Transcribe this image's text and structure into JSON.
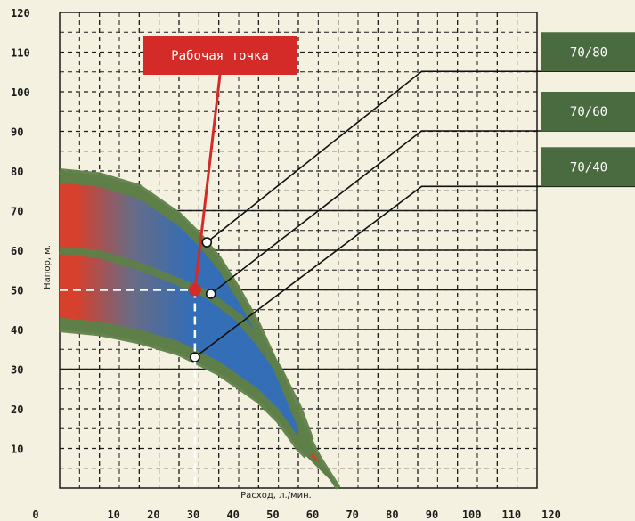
{
  "chart_data": {
    "type": "line",
    "title": "",
    "xlabel": "Расход, л./мин.",
    "ylabel": "Напор, м.",
    "xlim": [
      0,
      120
    ],
    "ylim": [
      0,
      120
    ],
    "x_ticks": [
      0,
      10,
      20,
      30,
      40,
      50,
      60,
      70,
      80,
      90,
      100,
      110,
      120
    ],
    "y_ticks": [
      0,
      10,
      20,
      30,
      40,
      50,
      60,
      70,
      80,
      90,
      100,
      110,
      120
    ],
    "grid": true,
    "band": {
      "upper": [
        [
          0,
          80
        ],
        [
          10,
          79
        ],
        [
          20,
          76
        ],
        [
          30,
          69
        ],
        [
          35,
          64
        ],
        [
          40,
          58
        ],
        [
          45,
          50
        ],
        [
          50,
          41
        ],
        [
          55,
          30
        ],
        [
          60,
          18
        ],
        [
          65,
          8
        ],
        [
          70,
          0
        ]
      ],
      "lower": [
        [
          0,
          40
        ],
        [
          10,
          39
        ],
        [
          20,
          37
        ],
        [
          30,
          34
        ],
        [
          40,
          29
        ],
        [
          50,
          22
        ],
        [
          55,
          17
        ],
        [
          60,
          10
        ],
        [
          62,
          8
        ]
      ]
    },
    "series": [
      {
        "name": "70/80",
        "points": [
          [
            0,
            80
          ],
          [
            10,
            79
          ],
          [
            20,
            76
          ],
          [
            30,
            69
          ],
          [
            35,
            64
          ],
          [
            40,
            58
          ],
          [
            45,
            50
          ],
          [
            50,
            41
          ],
          [
            55,
            30
          ],
          [
            60,
            18
          ],
          [
            65,
            8
          ],
          [
            70,
            0
          ]
        ]
      },
      {
        "name": "70/60",
        "points": [
          [
            0,
            60
          ],
          [
            10,
            59
          ],
          [
            20,
            56
          ],
          [
            30,
            52
          ],
          [
            37,
            49
          ],
          [
            45,
            43
          ],
          [
            50,
            37
          ],
          [
            55,
            30
          ],
          [
            60,
            20
          ],
          [
            63,
            12
          ]
        ]
      },
      {
        "name": "70/40",
        "points": [
          [
            0,
            40
          ],
          [
            10,
            39
          ],
          [
            20,
            37
          ],
          [
            30,
            34
          ],
          [
            40,
            29
          ],
          [
            50,
            22
          ],
          [
            55,
            17
          ],
          [
            60,
            10
          ],
          [
            62,
            8
          ]
        ]
      }
    ],
    "markers": [
      {
        "series": "70/80",
        "x": 37,
        "y": 62
      },
      {
        "series": "70/60",
        "x": 38,
        "y": 49
      },
      {
        "series": "70/40",
        "x": 34,
        "y": 33
      }
    ],
    "operating_point": {
      "label": "Рабочая точка",
      "x": 34,
      "y": 50
    },
    "legend": [
      "70/80",
      "70/60",
      "70/40"
    ]
  },
  "colors": {
    "background": "#f4f1e1",
    "band_green": "#5f7f49",
    "band_blue": "#2f6cc0",
    "band_red": "#e03a2a",
    "callout_red": "#d42a28",
    "label_green": "#4a6a3f",
    "grid": "#1a1a1a"
  }
}
